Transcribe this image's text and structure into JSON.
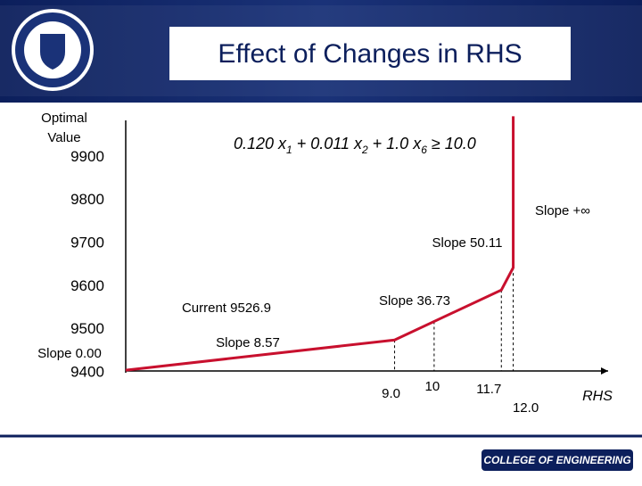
{
  "chart_data": {
    "type": "line",
    "title": "Effect of Changes in RHS",
    "y_label_lines": [
      "Optimal",
      "Value"
    ],
    "x_label": "RHS",
    "constraint_parts": [
      "0.120 x",
      "1",
      " + 0.011 x",
      "2",
      "  + 1.0 x",
      "6",
      " ≥ 10.0"
    ],
    "annotations": [
      "Slope 0.00",
      "Slope 8.57",
      "Current 9526.9",
      "Slope 36.73",
      "Slope 50.11",
      "Slope +∞"
    ],
    "x": [
      2.2,
      9,
      11.7,
      12,
      12
    ],
    "series": [
      {
        "name": "Optimal Value",
        "color": "#c8102e",
        "values": [
          9406,
          9476,
          9592,
          9644,
          9995
        ]
      }
    ],
    "xlim": [
      2.2,
      14.4
    ],
    "xticks": [
      {
        "value": 9,
        "label": "9.0"
      },
      10,
      11.7,
      {
        "value": 12,
        "label": "12.0"
      }
    ],
    "ylim": [
      9400,
      10000
    ],
    "yticks": [
      9400,
      9500,
      9600,
      9700,
      9800,
      9900
    ],
    "grid": false
  },
  "footer": {
    "logo_text": "COLLEGE OF ENGINEERING"
  }
}
